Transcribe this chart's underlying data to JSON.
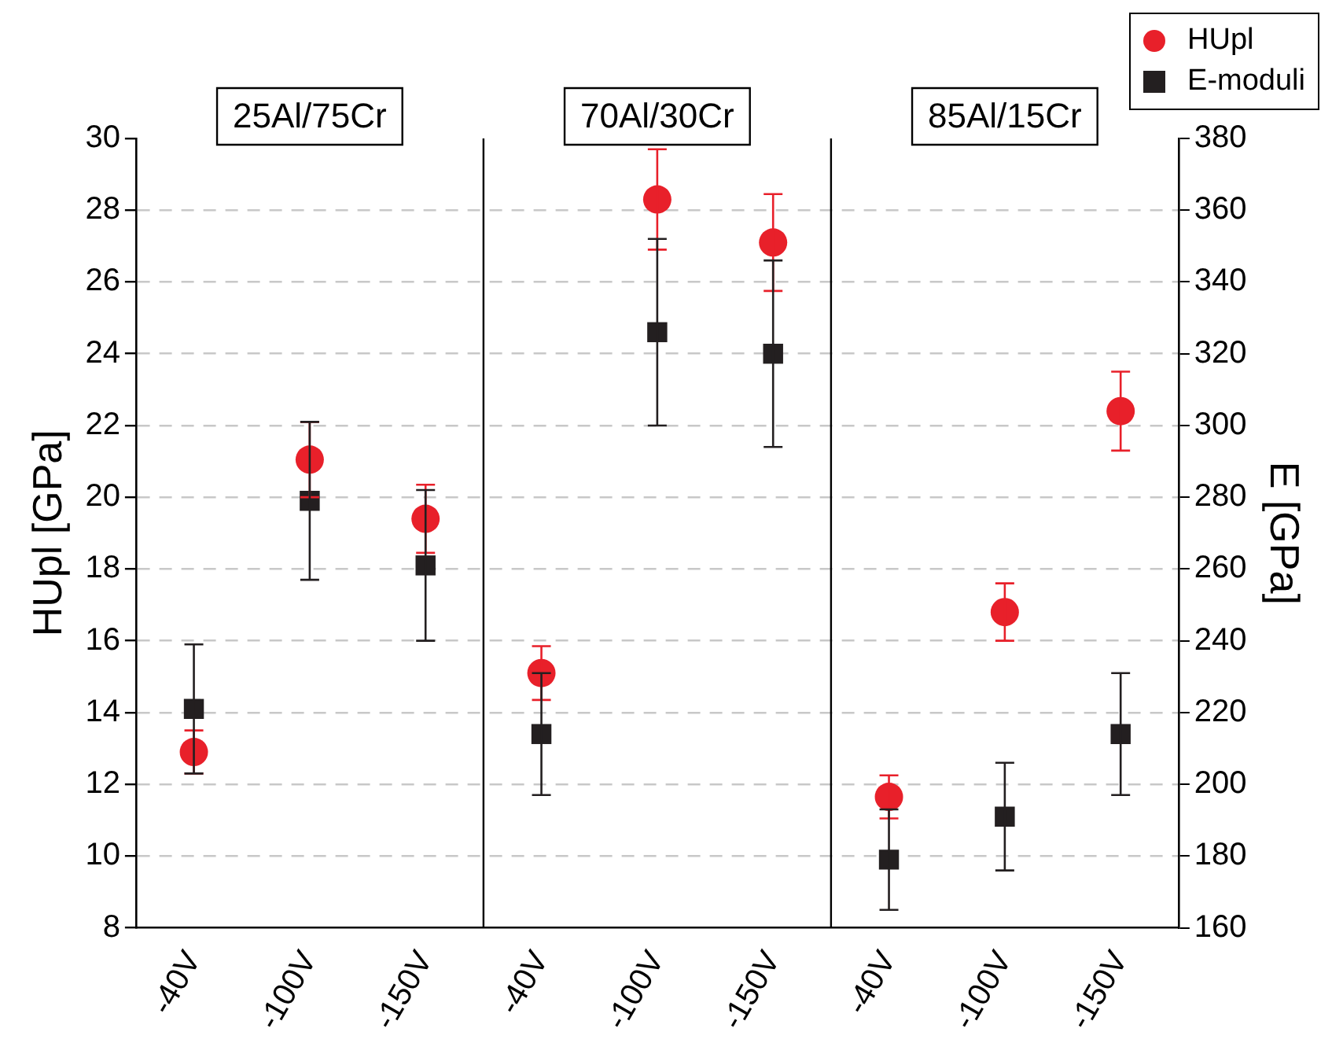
{
  "chart_data": {
    "type": "scatter",
    "categories": [
      "-40V",
      "-100V",
      "-150V",
      "-40V",
      "-100V",
      "-150V",
      "-40V",
      "-100V",
      "-150V"
    ],
    "ylabel": "HUpl [GPa]",
    "y2label": "E [GPa]",
    "ylim": [
      8,
      30
    ],
    "yticks": [
      8,
      10,
      12,
      14,
      16,
      18,
      20,
      22,
      24,
      26,
      28,
      30
    ],
    "y2lim": [
      160,
      380
    ],
    "y2ticks": [
      160,
      180,
      200,
      220,
      240,
      260,
      280,
      300,
      320,
      340,
      360,
      380
    ],
    "grid": "y",
    "legend": "top right",
    "annotations": [
      "25Al/75Cr",
      "70Al/30Cr",
      "85Al/15Cr"
    ],
    "series": [
      {
        "name": "HUpl",
        "color": "#e8202a",
        "marker": "circle",
        "values": [
          12.9,
          21.05,
          19.4,
          15.1,
          28.3,
          27.1,
          11.65,
          16.8,
          22.4
        ],
        "errors": [
          0.6,
          1.05,
          0.95,
          0.75,
          1.4,
          1.35,
          0.6,
          0.8,
          1.1
        ]
      },
      {
        "name": "E-moduli",
        "color": "#231f20",
        "marker": "square",
        "axis": "y2",
        "values": [
          221,
          279,
          261,
          214,
          326,
          320,
          179,
          191,
          214
        ],
        "errors": [
          18,
          22,
          21,
          17,
          26,
          26,
          14,
          15,
          17
        ]
      }
    ]
  }
}
